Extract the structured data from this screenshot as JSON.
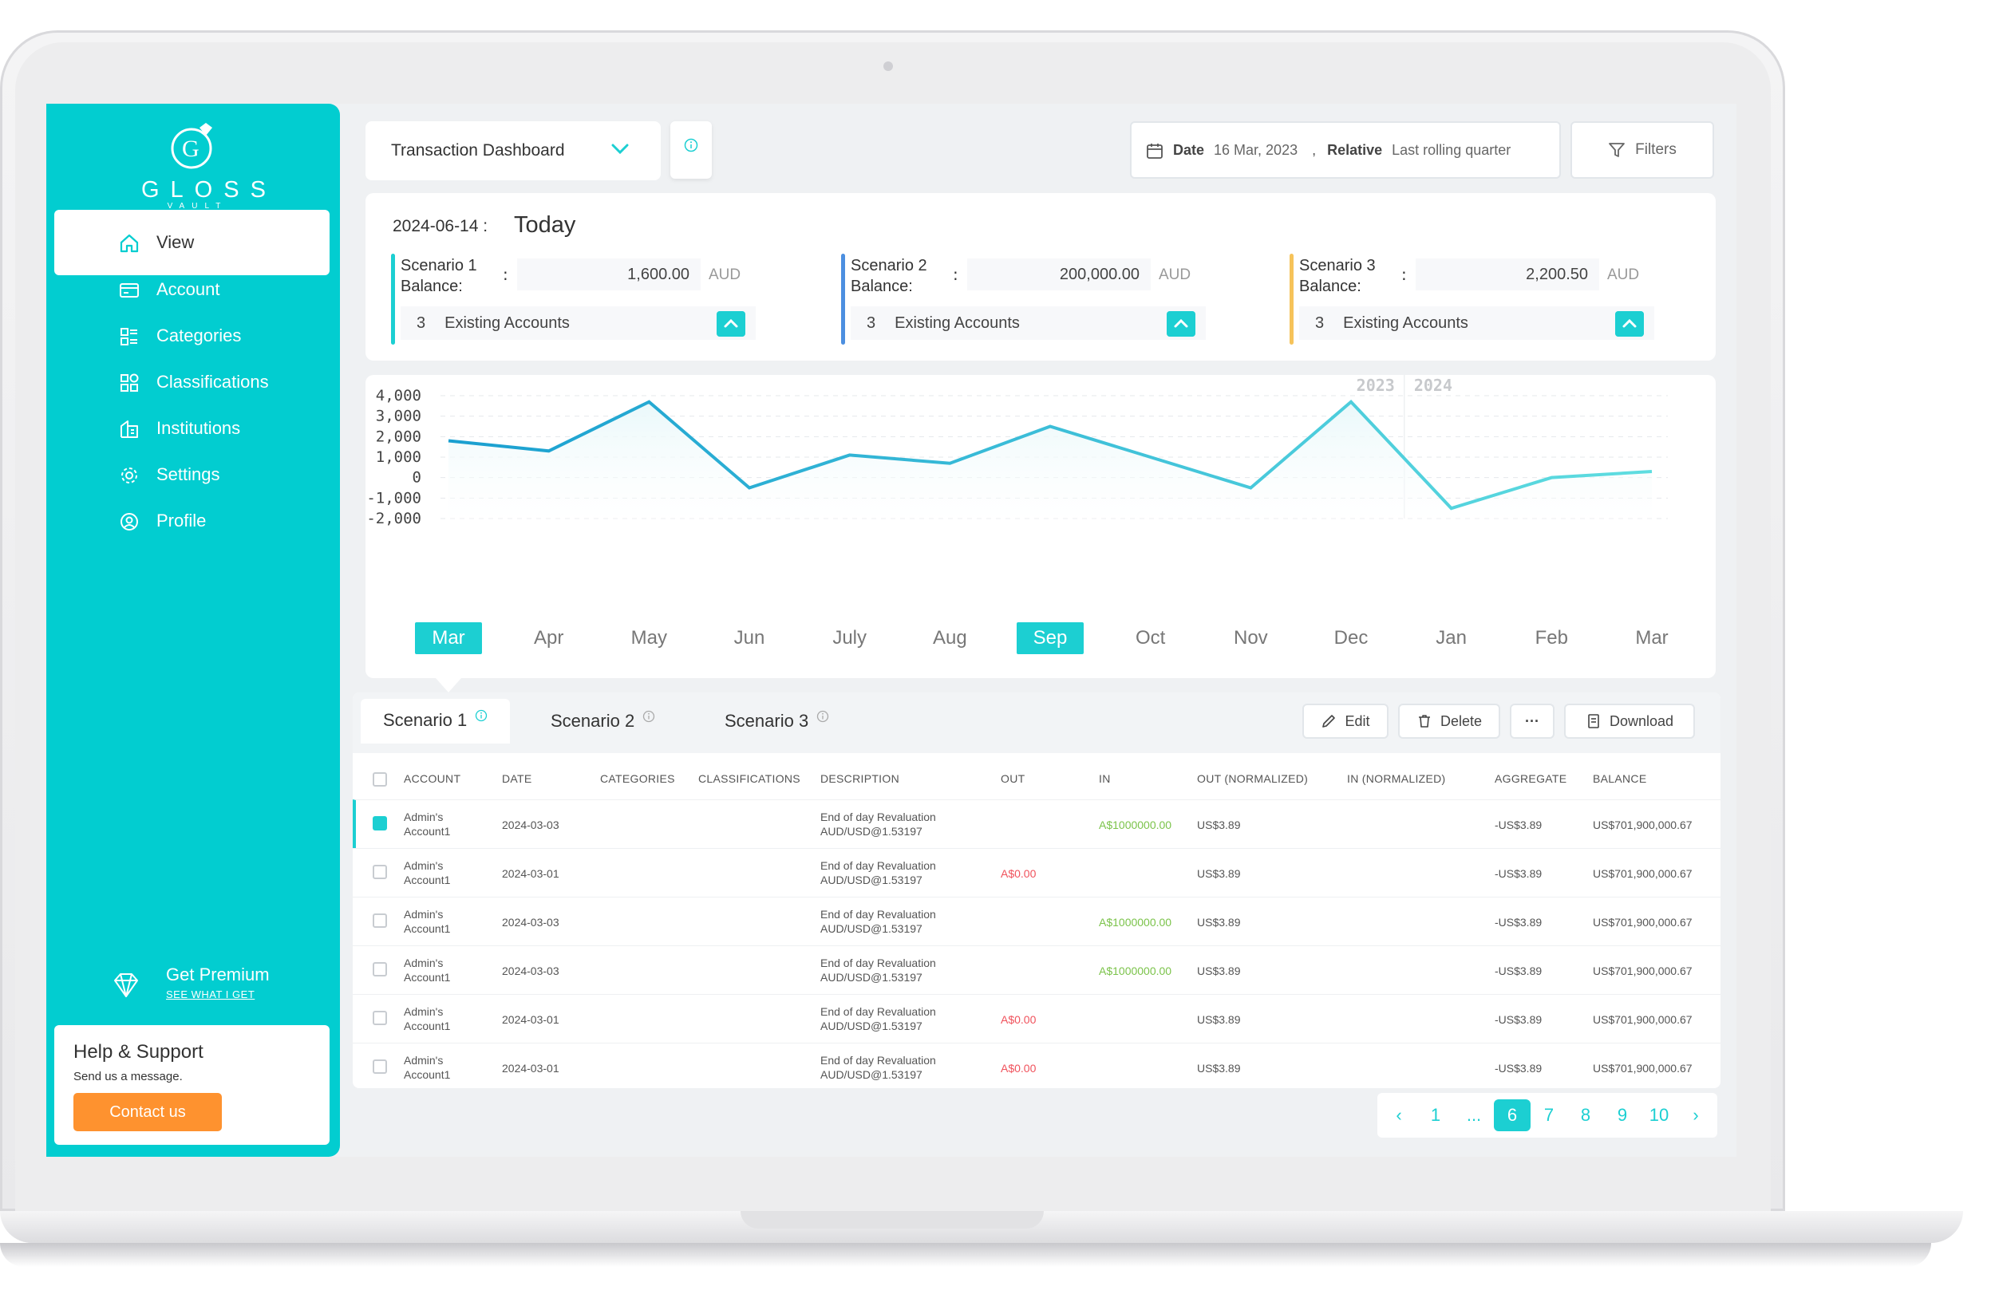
{
  "app": {
    "brand": "GLOSS",
    "brand_sub": "VAULT"
  },
  "sidebar": {
    "items": [
      {
        "label": "View",
        "icon": "home-icon"
      },
      {
        "label": "Account",
        "icon": "card-icon"
      },
      {
        "label": "Categories",
        "icon": "categories-icon"
      },
      {
        "label": "Classifications",
        "icon": "grid-icon"
      },
      {
        "label": "Institutions",
        "icon": "bank-icon"
      },
      {
        "label": "Settings",
        "icon": "gear-icon"
      },
      {
        "label": "Profile",
        "icon": "user-circle-icon"
      }
    ],
    "premium": {
      "title": "Get Premium",
      "link": "SEE WHAT I GET"
    },
    "help": {
      "title": "Help & Support",
      "subtitle": "Send us a message.",
      "button": "Contact us"
    }
  },
  "topbar": {
    "dashboard_select": "Transaction Dashboard",
    "date_label": "Date",
    "date_value": "16 Mar, 2023",
    "relative_label": "Relative",
    "relative_value": "Last rolling quarter",
    "separator": ",",
    "filters": "Filters"
  },
  "summary": {
    "date": "2024-06-14",
    "colon": ":",
    "today": "Today",
    "scenarios": [
      {
        "name": "Scenario 1 Balance:",
        "colon": ":",
        "amount": "1,600.00",
        "currency": "AUD",
        "count": "3",
        "accounts_label": "Existing Accounts",
        "color": "#1ccfd2"
      },
      {
        "name": "Scenario 2 Balance:",
        "colon": ":",
        "amount": "200,000.00",
        "currency": "AUD",
        "count": "3",
        "accounts_label": "Existing Accounts",
        "color": "#4c8fe0"
      },
      {
        "name": "Scenario 3 Balance:",
        "colon": ":",
        "amount": "2,200.50",
        "currency": "AUD",
        "count": "3",
        "accounts_label": "Existing Accounts",
        "color": "#f6c35a"
      }
    ]
  },
  "chart_data": {
    "type": "line",
    "categories": [
      "Mar",
      "Apr",
      "May",
      "Jun",
      "July",
      "Aug",
      "Sep",
      "Oct",
      "Nov",
      "Dec",
      "Jan",
      "Feb",
      "Mar"
    ],
    "values": [
      1800,
      1300,
      3700,
      -500,
      1100,
      700,
      2500,
      1000,
      -500,
      3700,
      -1500,
      0,
      300
    ],
    "ylim": [
      -2000,
      4000
    ],
    "yticks": [
      "4,000",
      "3,000",
      "2,000",
      "1,000",
      "0",
      "-1,000",
      "-2,000"
    ],
    "year_labels": [
      "2023",
      "2024"
    ],
    "selected_months": [
      "Mar",
      "Sep"
    ],
    "colors": {
      "line_start": "#1a9fd0",
      "line_end": "#5fdde0",
      "fill": "#e9f8fa"
    },
    "grid": true
  },
  "table": {
    "tabs": [
      "Scenario 1",
      "Scenario 2",
      "Scenario 3"
    ],
    "actions": {
      "edit": "Edit",
      "delete": "Delete",
      "more": "···",
      "download": "Download"
    },
    "columns": [
      "ACCOUNT",
      "DATE",
      "CATEGORIES",
      "CLASSIFICATIONS",
      "DESCRIPTION",
      "OUT",
      "IN",
      "OUT (NORMALIZED)",
      "IN (NORMALIZED)",
      "AGGREGATE",
      "BALANCE"
    ],
    "rows": [
      {
        "account": [
          "Admin's",
          "Account1"
        ],
        "date": "2024-03-03",
        "desc": [
          "End of day Revaluation",
          "AUD/USD@1.53197"
        ],
        "out": "",
        "in": "A$1000000.00",
        "out_norm": "US$3.89",
        "in_norm": "",
        "aggregate": "-US$3.89",
        "balance": "US$701,900,000.67",
        "checked": true
      },
      {
        "account": [
          "Admin's",
          "Account1"
        ],
        "date": "2024-03-01",
        "desc": [
          "End of day Revaluation",
          "AUD/USD@1.53197"
        ],
        "out": "A$0.00",
        "in": "",
        "out_norm": "US$3.89",
        "in_norm": "",
        "aggregate": "-US$3.89",
        "balance": "US$701,900,000.67",
        "checked": false
      },
      {
        "account": [
          "Admin's",
          "Account1"
        ],
        "date": "2024-03-03",
        "desc": [
          "End of day Revaluation",
          "AUD/USD@1.53197"
        ],
        "out": "",
        "in": "A$1000000.00",
        "out_norm": "US$3.89",
        "in_norm": "",
        "aggregate": "-US$3.89",
        "balance": "US$701,900,000.67",
        "checked": false
      },
      {
        "account": [
          "Admin's",
          "Account1"
        ],
        "date": "2024-03-03",
        "desc": [
          "End of day Revaluation",
          "AUD/USD@1.53197"
        ],
        "out": "",
        "in": "A$1000000.00",
        "out_norm": "US$3.89",
        "in_norm": "",
        "aggregate": "-US$3.89",
        "balance": "US$701,900,000.67",
        "checked": false
      },
      {
        "account": [
          "Admin's",
          "Account1"
        ],
        "date": "2024-03-01",
        "desc": [
          "End of day Revaluation",
          "AUD/USD@1.53197"
        ],
        "out": "A$0.00",
        "in": "",
        "out_norm": "US$3.89",
        "in_norm": "",
        "aggregate": "-US$3.89",
        "balance": "US$701,900,000.67",
        "checked": false
      },
      {
        "account": [
          "Admin's",
          "Account1"
        ],
        "date": "2024-03-01",
        "desc": [
          "End of day Revaluation",
          "AUD/USD@1.53197"
        ],
        "out": "A$0.00",
        "in": "",
        "out_norm": "US$3.89",
        "in_norm": "",
        "aggregate": "-US$3.89",
        "balance": "US$701,900,000.67",
        "checked": false
      }
    ]
  },
  "pagination": {
    "pages": [
      "1",
      "...",
      "6",
      "7",
      "8",
      "9",
      "10"
    ],
    "current": "6",
    "prev": "‹",
    "next": "›"
  },
  "colors": {
    "accent": "#02cdd0",
    "cta": "#fe922f",
    "in_amount": "#7bc34a",
    "out_amount": "#f0525c"
  }
}
